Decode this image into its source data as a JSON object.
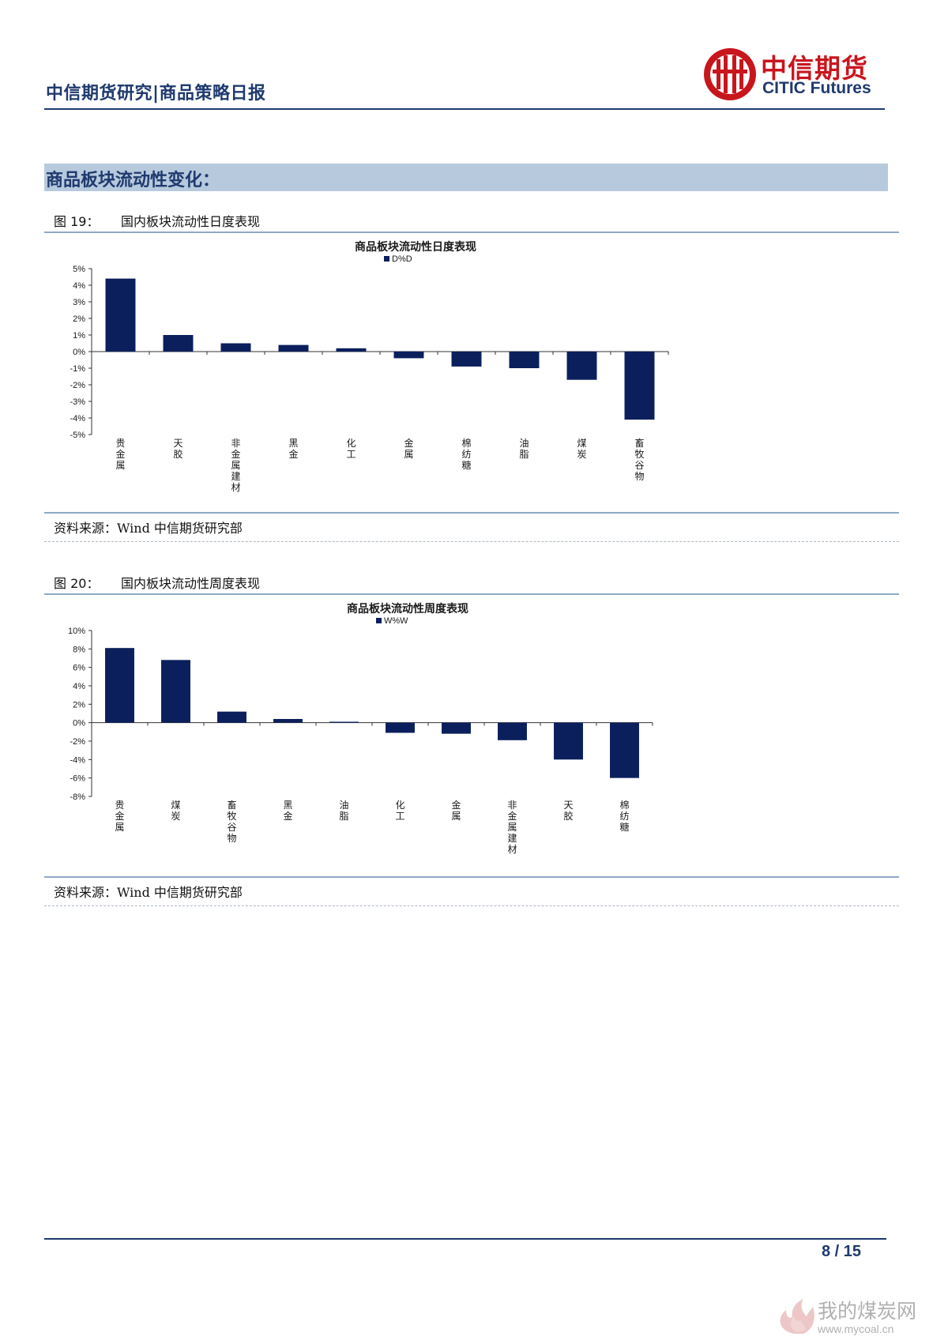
{
  "header": {
    "title": "中信期货研究|商品策略日报",
    "logo_cn": "中信期货",
    "logo_en": "CITIC Futures"
  },
  "section": {
    "title": "商品板块流动性变化："
  },
  "figures": [
    {
      "number": "图 19：",
      "caption": "国内板块流动性日度表现",
      "source": "资料来源：Wind 中信期货研究部"
    },
    {
      "number": "图 20：",
      "caption": "国内板块流动性周度表现",
      "source": "资料来源：Wind 中信期货研究部"
    }
  ],
  "chart_data": [
    {
      "type": "bar",
      "title": "商品板块流动性日度表现",
      "legend": "D%D",
      "categories": [
        "贵金属",
        "天胶",
        "非金属建材",
        "黑金",
        "化工",
        "金属",
        "棉纺糖",
        "油脂",
        "煤炭",
        "畜牧谷物"
      ],
      "values": [
        4.4,
        1.0,
        0.5,
        0.4,
        0.2,
        -0.4,
        -0.9,
        -1.0,
        -1.7,
        -4.1
      ],
      "ylim": [
        -5,
        5
      ],
      "yticks": [
        "5%",
        "4%",
        "3%",
        "2%",
        "1%",
        "0%",
        "-1%",
        "-2%",
        "-3%",
        "-4%",
        "-5%"
      ],
      "bar_color": "#0b1f5c"
    },
    {
      "type": "bar",
      "title": "商品板块流动性周度表现",
      "legend": "W%W",
      "categories": [
        "贵金属",
        "煤炭",
        "畜牧谷物",
        "黑金",
        "油脂",
        "化工",
        "金属",
        "非金属建材",
        "天胶",
        "棉纺糖"
      ],
      "values": [
        8.1,
        6.8,
        1.2,
        0.4,
        0.1,
        -1.1,
        -1.2,
        -1.9,
        -4.0,
        -6.0
      ],
      "ylim": [
        -8,
        10
      ],
      "yticks": [
        "10%",
        "8%",
        "6%",
        "4%",
        "2%",
        "0%",
        "-2%",
        "-4%",
        "-6%",
        "-8%"
      ],
      "bar_color": "#0b1f5c"
    }
  ],
  "footer": {
    "page": "8 / 15"
  },
  "watermark": {
    "cn": "我的煤炭网",
    "url": "www.mycoal.cn"
  }
}
